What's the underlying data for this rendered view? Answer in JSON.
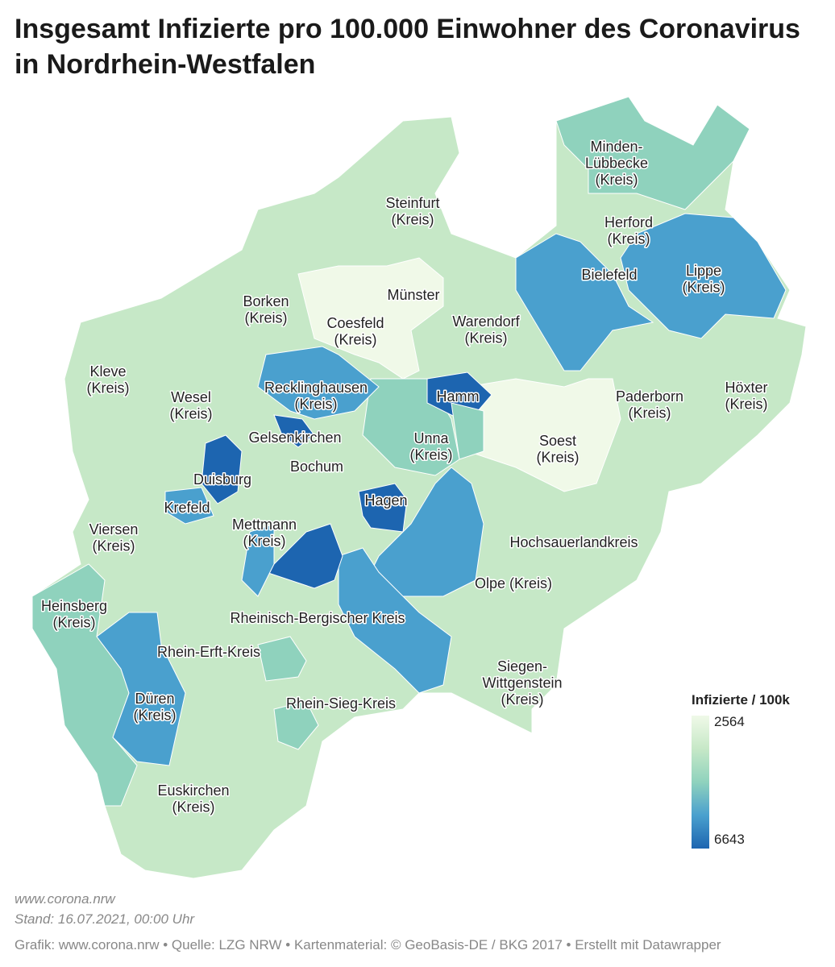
{
  "header": {
    "title": "Insgesamt Infizierte pro 100.000 Einwohner des Coronavirus in Nordrhein-Westfalen"
  },
  "map": {
    "labels": [
      {
        "lines": [
          "Minden-",
          "Lübbecke",
          "(Kreis)"
        ]
      },
      {
        "lines": [
          "Steinfurt",
          "(Kreis)"
        ]
      },
      {
        "lines": [
          "Herford",
          "(Kreis)"
        ]
      },
      {
        "lines": [
          "Lippe",
          "(Kreis)"
        ]
      },
      {
        "lines": [
          "Bielefeld"
        ]
      },
      {
        "lines": [
          "Münster"
        ]
      },
      {
        "lines": [
          "Borken",
          "(Kreis)"
        ]
      },
      {
        "lines": [
          "Coesfeld",
          "(Kreis)"
        ]
      },
      {
        "lines": [
          "Warendorf",
          "(Kreis)"
        ]
      },
      {
        "lines": [
          "Kleve",
          "(Kreis)"
        ]
      },
      {
        "lines": [
          "Recklinghausen",
          "(Kreis)"
        ]
      },
      {
        "lines": [
          "Hamm"
        ]
      },
      {
        "lines": [
          "Wesel",
          "(Kreis)"
        ]
      },
      {
        "lines": [
          "Paderborn",
          "(Kreis)"
        ]
      },
      {
        "lines": [
          "Höxter",
          "(Kreis)"
        ]
      },
      {
        "lines": [
          "Gelsenkirchen"
        ]
      },
      {
        "lines": [
          "Unna",
          "(Kreis)"
        ]
      },
      {
        "lines": [
          "Soest",
          "(Kreis)"
        ]
      },
      {
        "lines": [
          "Bochum"
        ]
      },
      {
        "lines": [
          "Duisburg"
        ]
      },
      {
        "lines": [
          "Hagen"
        ]
      },
      {
        "lines": [
          "Krefeld"
        ]
      },
      {
        "lines": [
          "Mettmann",
          "(Kreis)"
        ]
      },
      {
        "lines": [
          "Viersen",
          "(Kreis)"
        ]
      },
      {
        "lines": [
          "Hochsauerlandkreis"
        ]
      },
      {
        "lines": [
          "Olpe (Kreis)"
        ]
      },
      {
        "lines": [
          "Heinsberg",
          "(Kreis)"
        ]
      },
      {
        "lines": [
          "Rheinisch-Bergischer Kreis"
        ]
      },
      {
        "lines": [
          "Rhein-Erft-Kreis"
        ]
      },
      {
        "lines": [
          "Siegen-",
          "Wittgenstein",
          "(Kreis)"
        ]
      },
      {
        "lines": [
          "Düren",
          "(Kreis)"
        ]
      },
      {
        "lines": [
          "Rhein-Sieg-Kreis"
        ]
      },
      {
        "lines": [
          "Euskirchen",
          "(Kreis)"
        ]
      }
    ]
  },
  "legend": {
    "title": "Infizierte / 100k",
    "min": 2564,
    "max": 6643,
    "colors": [
      "#f0f9e8",
      "#c6e8c7",
      "#8fd2bd",
      "#4aa0ce",
      "#1d65b0"
    ]
  },
  "footer": {
    "url": "www.corona.nrw",
    "date": "Stand: 16.07.2021, 00:00 Uhr",
    "credits": "Grafik: www.corona.nrw • Quelle: LZG NRW • Kartenmaterial: © GeoBasis-DE / BKG 2017 • Erstellt mit Datawrapper"
  }
}
